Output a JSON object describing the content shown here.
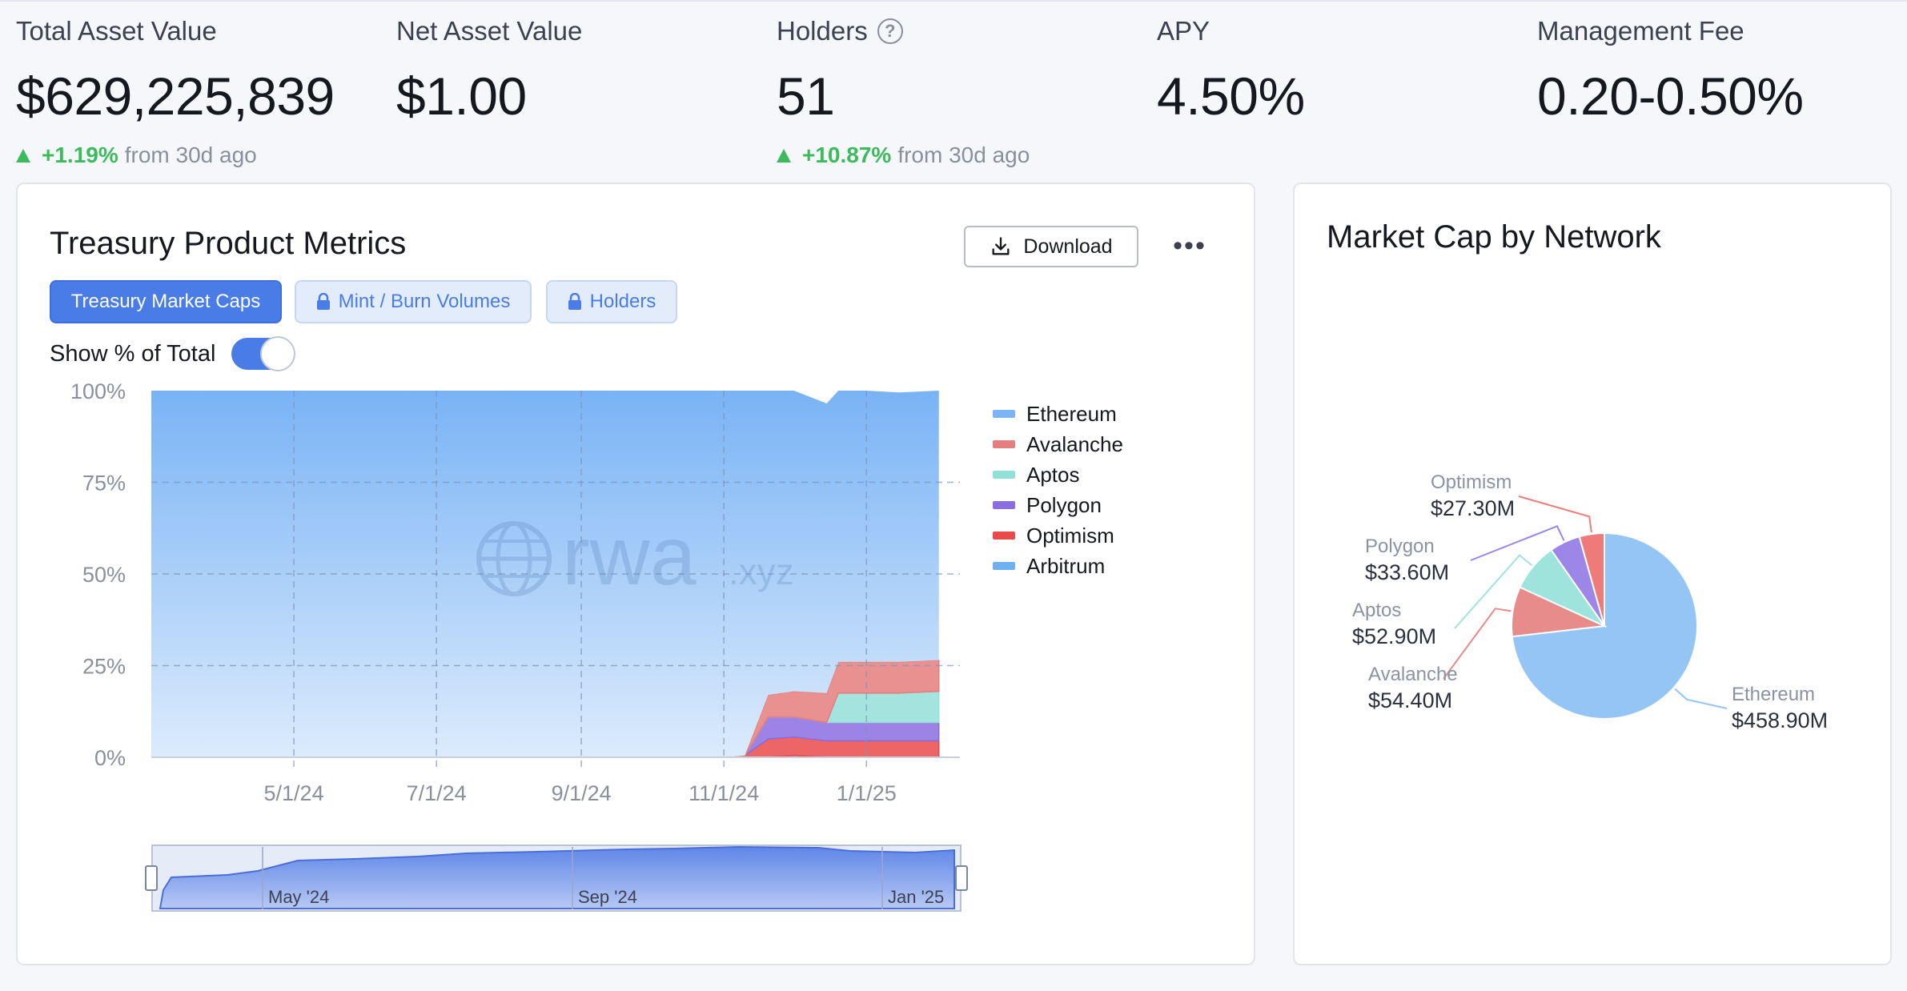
{
  "stats": [
    {
      "label": "Total Asset Value",
      "value": "$629,225,839",
      "change": "+1.19%",
      "change_suffix": "from 30d ago"
    },
    {
      "label": "Net Asset Value",
      "value": "$1.00"
    },
    {
      "label": "Holders",
      "value": "51",
      "change": "+10.87%",
      "change_suffix": "from 30d ago",
      "help_icon": "?"
    },
    {
      "label": "APY",
      "value": "4.50%"
    },
    {
      "label": "Management Fee",
      "value": "0.20-0.50%"
    }
  ],
  "metrics_card": {
    "title": "Treasury Product Metrics",
    "download_label": "Download",
    "more_label": "•••",
    "tabs": [
      {
        "label": "Treasury Market Caps",
        "active": true
      },
      {
        "label": "Mint / Burn Volumes",
        "locked": true
      },
      {
        "label": "Holders",
        "locked": true
      }
    ],
    "toggle_label": "Show % of Total",
    "toggle_on": true,
    "watermark": "rwa",
    "watermark_suffix": ".xyz",
    "navigator_labels": [
      "May '24",
      "Sep '24",
      "Jan '25"
    ]
  },
  "chart_data": [
    {
      "type": "area",
      "stacked": true,
      "percent": true,
      "y_ticks": [
        "100%",
        "75%",
        "50%",
        "25%",
        "0%"
      ],
      "ylim": [
        0,
        100
      ],
      "x_ticks": [
        "5/1/24",
        "7/1/24",
        "9/1/24",
        "11/1/24",
        "1/1/25"
      ],
      "legend_position": "right",
      "x": [
        "3/1/24",
        "11/1/24",
        "11/10/24",
        "11/20/24",
        "12/1/24",
        "12/15/24",
        "12/20/24",
        "1/1/25",
        "1/15/25",
        "2/1/25"
      ],
      "series": [
        {
          "name": "Ethereum",
          "color": "#7cb5f6",
          "values": [
            100,
            100,
            99.5,
            83,
            82,
            79,
            74,
            74,
            73.5,
            73.5
          ]
        },
        {
          "name": "Avalanche",
          "color": "#e57e7e",
          "values": [
            0,
            0,
            0,
            6,
            7,
            8,
            8.5,
            8.5,
            8.5,
            8.5
          ]
        },
        {
          "name": "Aptos",
          "color": "#93e0d8",
          "values": [
            0,
            0,
            0,
            0,
            0,
            0,
            8,
            8,
            8,
            8.5
          ]
        },
        {
          "name": "Polygon",
          "color": "#8a6ee0",
          "values": [
            0,
            0,
            0,
            6,
            5.5,
            5,
            5,
            5,
            5,
            5
          ]
        },
        {
          "name": "Optimism",
          "color": "#ea4a4a",
          "values": [
            0,
            0,
            0.5,
            5,
            5,
            4.5,
            4.5,
            4.5,
            4.5,
            4.5
          ]
        },
        {
          "name": "Arbitrum",
          "color": "#6fb0f0",
          "values": [
            0,
            0,
            0,
            0,
            0.5,
            0,
            0,
            0,
            0,
            0
          ]
        }
      ]
    },
    {
      "type": "pie",
      "title": "Market Cap by Network",
      "slices": [
        {
          "name": "Ethereum",
          "value": 458.9,
          "label": "$458.90M",
          "color": "#94c5f5"
        },
        {
          "name": "Avalanche",
          "value": 54.4,
          "label": "$54.40M",
          "color": "#e88b8b"
        },
        {
          "name": "Aptos",
          "value": 52.9,
          "label": "$52.90M",
          "color": "#9fe3dd"
        },
        {
          "name": "Polygon",
          "value": 33.6,
          "label": "$33.60M",
          "color": "#9c86e8"
        },
        {
          "name": "Optimism",
          "value": 27.3,
          "label": "$27.30M",
          "color": "#ef7a7a"
        }
      ]
    }
  ]
}
